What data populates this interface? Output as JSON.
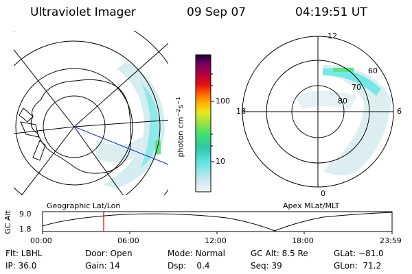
{
  "header": {
    "instrument": "Ultraviolet Imager",
    "date": "09 Sep 07",
    "time": "04:19:51 UT"
  },
  "left_panel": {
    "caption": "Geographic Lat/Lon"
  },
  "right_panel": {
    "caption": "Apex MLat/MLT",
    "mlt_labels": {
      "top": "12",
      "left": "18",
      "right": "6",
      "bottom": "0"
    },
    "lat_labels": [
      "60",
      "70",
      "80"
    ]
  },
  "colorbar": {
    "unit_label": "photon cm",
    "unit_exp1": "−2",
    "unit_s": "s",
    "unit_exp2": "−1",
    "ticks": [
      "100",
      "10"
    ]
  },
  "altitude_plot": {
    "ylabel": "GC Alt",
    "y_ticks": [
      "9.0",
      "1.8"
    ],
    "x_ticks": [
      "00:00",
      "06:00",
      "12:00",
      "18:00",
      "23:59"
    ],
    "marker_color": "#e00000"
  },
  "status": {
    "row1": [
      {
        "text": "Flt: LBHL"
      },
      {
        "text": "Door: Open"
      },
      {
        "text": "Mode: Normal"
      },
      {
        "text": "GC Alt: 8.5 Re"
      },
      {
        "text": "GLat: −81.0"
      }
    ],
    "row2": [
      {
        "text": "IP: 36.0"
      },
      {
        "text": "Gain: 14"
      },
      {
        "text": "Dsp:    0.4"
      },
      {
        "text": "Seq: 39"
      },
      {
        "text": "GLon:  71.2"
      }
    ]
  }
}
